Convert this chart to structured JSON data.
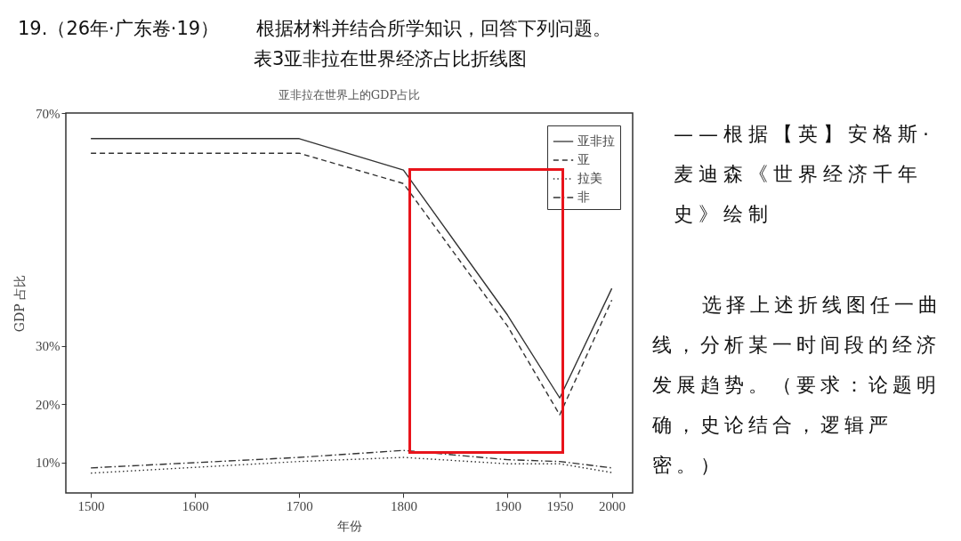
{
  "chart_data": {
    "type": "line",
    "title": "亚非拉在世界上的GDP占比",
    "xlabel": "年份",
    "ylabel": "GDP 占比",
    "annotations": [
      "19.（26年·广东卷·19）　　根据材料并结合所学知识，回答下列问题。",
      "表3亚非拉在世界经济占比折线图",
      "——根据【英】安格斯·麦迪森《世界经济千年史》绘制",
      "选择上述折线图任一曲线，分析某一时间段的经济发展趋势。（要求：论题明确，史论结合，逻辑严密。）"
    ],
    "x": [
      1500,
      1700,
      1800,
      1900,
      1950,
      2000
    ],
    "series": [
      {
        "name": "亚非拉",
        "color": "#333333",
        "line_style": "solid",
        "values": [
          65.6,
          65.6,
          60.2,
          35.3,
          21.1,
          39.9
        ]
      },
      {
        "name": "亚",
        "color": "#333333",
        "line_style": "dashed",
        "values": [
          63.1,
          63.1,
          57.9,
          33.4,
          18.2,
          37.9
        ]
      },
      {
        "name": "拉美",
        "color": "#333333",
        "line_style": "dotted",
        "values": [
          8.2,
          10.2,
          10.9,
          9.8,
          9.8,
          8.3
        ]
      },
      {
        "name": "非",
        "color": "#333333",
        "line_style": "dashdot",
        "values": [
          9.1,
          10.9,
          12.1,
          10.5,
          10.2,
          9.1
        ]
      }
    ],
    "xlim": [
      1476,
      2020
    ],
    "ylim": [
      4.8,
      70
    ],
    "xticks": [
      1500,
      1600,
      1700,
      1800,
      1900,
      1950,
      2000
    ],
    "yticks": [
      {
        "value": 10,
        "label": "10%"
      },
      {
        "value": 20,
        "label": "20%"
      },
      {
        "value": 30,
        "label": "30%"
      },
      {
        "value": 70,
        "label": "70%"
      }
    ],
    "grid": false,
    "legend": "top right",
    "marker": "none"
  }
}
